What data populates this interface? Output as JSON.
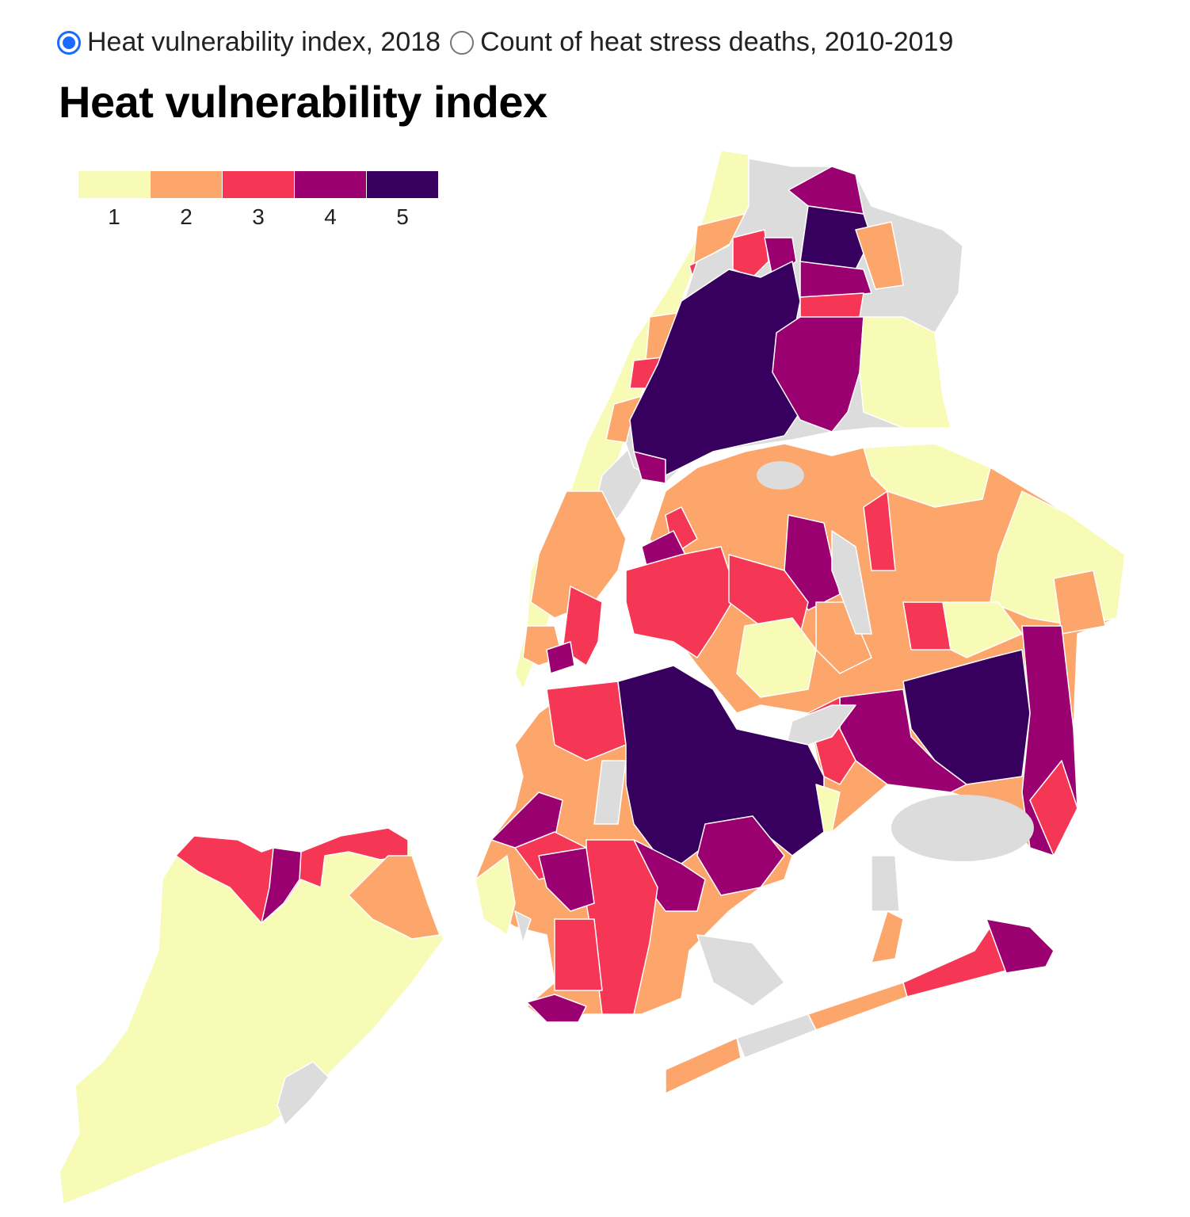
{
  "controls": {
    "options": [
      {
        "label": "Heat vulnerability index, 2018",
        "selected": true
      },
      {
        "label": "Count of heat stress deaths, 2010-2019",
        "selected": false
      }
    ]
  },
  "title": "Heat vulnerability index",
  "legend": {
    "items": [
      {
        "label": "1",
        "color": "#f7fbb5"
      },
      {
        "label": "2",
        "color": "#fca66b"
      },
      {
        "label": "3",
        "color": "#f63655"
      },
      {
        "label": "4",
        "color": "#9a0070"
      },
      {
        "label": "5",
        "color": "#37005e"
      }
    ],
    "no_data_color": "#dcdcdc"
  }
}
